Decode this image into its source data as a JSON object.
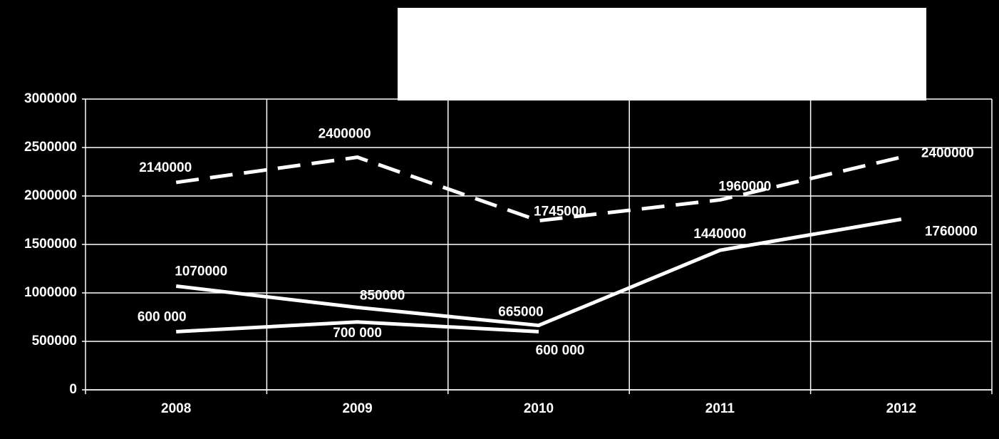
{
  "chart_data": {
    "type": "line",
    "categories": [
      "2008",
      "2009",
      "2010",
      "2011",
      "2012"
    ],
    "series": [
      {
        "color": "#ffffff",
        "dashed": true,
        "values": [
          2140000,
          2400000,
          1745000,
          1960000,
          2400000
        ]
      },
      {
        "color": "#ffffff",
        "dashed": false,
        "values": [
          1070000,
          850000,
          665000,
          1440000,
          1760000
        ]
      },
      {
        "color": "#ffffff",
        "dashed": false,
        "values": [
          600000,
          700000,
          600000,
          null,
          null
        ],
        "value_labels": [
          "600 000",
          "700 000",
          "600 000",
          null,
          null
        ]
      }
    ],
    "ylim": [
      0,
      3000000
    ],
    "yticks": [
      0,
      500000,
      1000000,
      1500000,
      2000000,
      2500000,
      3000000
    ],
    "grid": true
  }
}
